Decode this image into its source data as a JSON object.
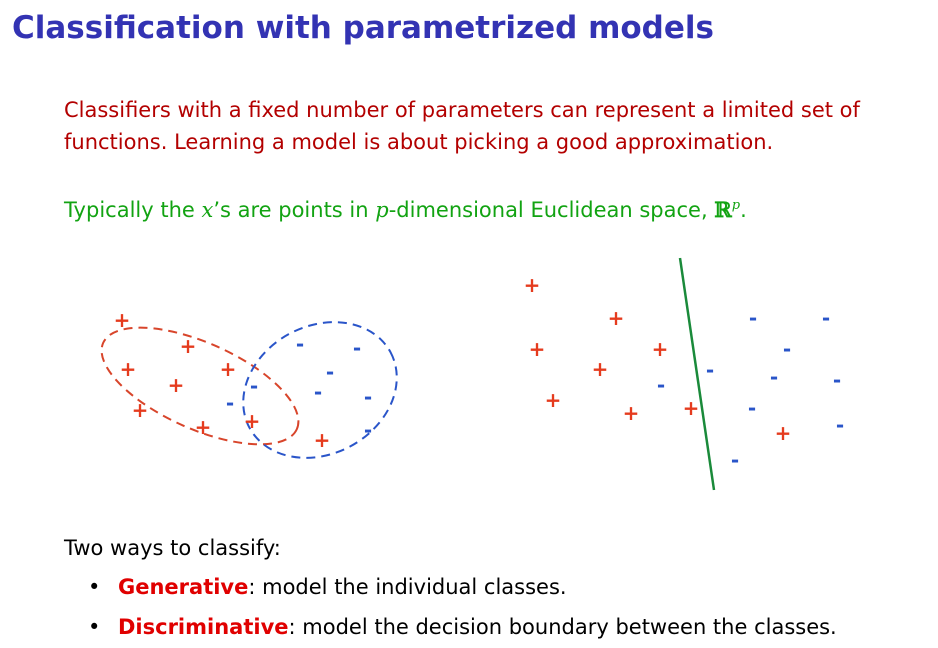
{
  "slide": {
    "title": "Classification with parametrized models",
    "intro": "Classifiers with a fixed number of parameters can represent a limited set of functions. Learning a model is about picking a good approximation.",
    "typical_prefix": "Typically the ",
    "typical_var": "x",
    "typical_mid1": "’s are points in ",
    "typical_dim": "p",
    "typical_mid2": "-dimensional Euclidean space, ",
    "typical_space": "ℝ",
    "typical_sup": "p",
    "typical_end": ".",
    "ways_heading": "Two ways to classify:",
    "bullets": [
      {
        "dot": "•",
        "term": "Generative",
        "rest": ": model the individual classes."
      },
      {
        "dot": "•",
        "term": "Discriminative",
        "rest": ": model the decision boundary between the classes."
      }
    ]
  },
  "figure": {
    "plus_symbol": "+",
    "minus_symbol": "-",
    "colors": {
      "plus": "#e53b1e",
      "minus": "#2a55c9",
      "boundary": "#1a8a3a",
      "ellipse_plus": "#d8452b",
      "ellipse_minus": "#2a55c9"
    }
  }
}
